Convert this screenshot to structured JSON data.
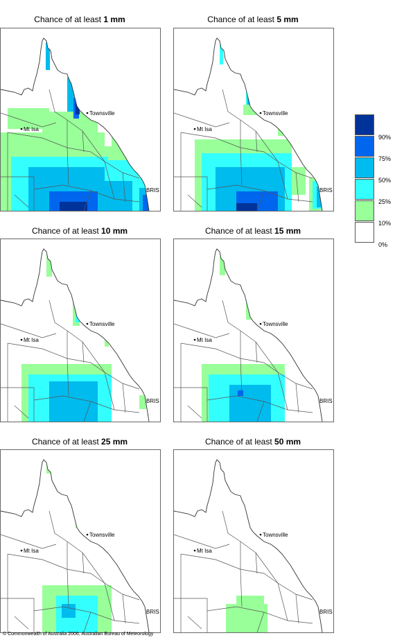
{
  "panels": [
    {
      "prefix": "Chance of at least ",
      "amount": "1 mm",
      "level": 6
    },
    {
      "prefix": "Chance of at least ",
      "amount": "5 mm",
      "level": 5
    },
    {
      "prefix": "Chance of at least ",
      "amount": "10 mm",
      "level": 4
    },
    {
      "prefix": "Chance of at least ",
      "amount": "15 mm",
      "level": 3
    },
    {
      "prefix": "Chance of at least ",
      "amount": "25 mm",
      "level": 2
    },
    {
      "prefix": "Chance of at least ",
      "amount": "50 mm",
      "level": 1
    }
  ],
  "places": {
    "townsville": "Townsville",
    "mt_isa": "Mt Isa",
    "bris": "BRIS"
  },
  "legend": {
    "colors": [
      "#003399",
      "#0066ee",
      "#00bbee",
      "#33ffff",
      "#99ff99",
      "#ffffff"
    ],
    "labels": [
      "90%",
      "75%",
      "50%",
      "25%",
      "10%",
      "0%"
    ]
  },
  "footer": "© Commonwealth of Australia 2006, Australian Bureau of Meteorology"
}
